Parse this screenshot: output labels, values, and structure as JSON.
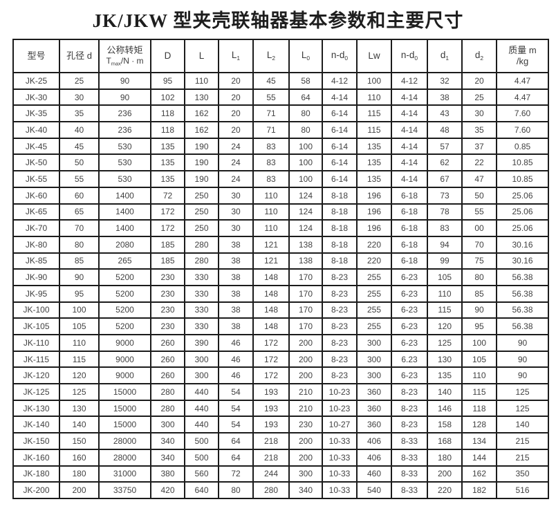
{
  "title": "JK/JKW 型夹壳联轴器基本参数和主要尺寸",
  "colors": {
    "border": "#1b1b1b",
    "cell_text": "#414141",
    "title_text": "#1e1e1e",
    "background": "#ffffff"
  },
  "table": {
    "headers": {
      "model": {
        "text": "型号"
      },
      "bore": {
        "text": "孔径 d"
      },
      "torque": {
        "line1": "公称转矩",
        "base": "T",
        "sub": "max",
        "rest": "/N · m"
      },
      "D": {
        "text": "D"
      },
      "L": {
        "text": "L"
      },
      "L1": {
        "base": "L",
        "sub": "1"
      },
      "L2": {
        "base": "L",
        "sub": "2"
      },
      "L0": {
        "base": "L",
        "sub": "0"
      },
      "nd0_a": {
        "base": "n-d",
        "sub": "0"
      },
      "Lw": {
        "text": "Lw"
      },
      "nd0_b": {
        "base": "n-d",
        "sub": "0"
      },
      "d1": {
        "base": "d",
        "sub": "1"
      },
      "d2": {
        "base": "d",
        "sub": "2"
      },
      "mass": {
        "line1": "质量 m",
        "line2": "/kg"
      }
    },
    "rows": [
      [
        "JK-25",
        "25",
        "90",
        "95",
        "110",
        "20",
        "45",
        "58",
        "4-12",
        "100",
        "4-12",
        "32",
        "20",
        "4.47"
      ],
      [
        "JK-30",
        "30",
        "90",
        "102",
        "130",
        "20",
        "55",
        "64",
        "4-14",
        "110",
        "4-14",
        "38",
        "25",
        "4.47"
      ],
      [
        "JK-35",
        "35",
        "236",
        "118",
        "162",
        "20",
        "71",
        "80",
        "6-14",
        "115",
        "4-14",
        "43",
        "30",
        "7.60"
      ],
      [
        "JK-40",
        "40",
        "236",
        "118",
        "162",
        "20",
        "71",
        "80",
        "6-14",
        "115",
        "4-14",
        "48",
        "35",
        "7.60"
      ],
      [
        "JK-45",
        "45",
        "530",
        "135",
        "190",
        "24",
        "83",
        "100",
        "6-14",
        "135",
        "4-14",
        "57",
        "37",
        "0.85"
      ],
      [
        "JK-50",
        "50",
        "530",
        "135",
        "190",
        "24",
        "83",
        "100",
        "6-14",
        "135",
        "4-14",
        "62",
        "22",
        "10.85"
      ],
      [
        "JK-55",
        "55",
        "530",
        "135",
        "190",
        "24",
        "83",
        "100",
        "6-14",
        "135",
        "4-14",
        "67",
        "47",
        "10.85"
      ],
      [
        "JK-60",
        "60",
        "1400",
        "72",
        "250",
        "30",
        "110",
        "124",
        "8-18",
        "196",
        "6-18",
        "73",
        "50",
        "25.06"
      ],
      [
        "JK-65",
        "65",
        "1400",
        "172",
        "250",
        "30",
        "110",
        "124",
        "8-18",
        "196",
        "6-18",
        "78",
        "55",
        "25.06"
      ],
      [
        "JK-70",
        "70",
        "1400",
        "172",
        "250",
        "30",
        "110",
        "124",
        "8-18",
        "196",
        "6-18",
        "83",
        "00",
        "25.06"
      ],
      [
        "JK-80",
        "80",
        "2080",
        "185",
        "280",
        "38",
        "121",
        "138",
        "8-18",
        "220",
        "6-18",
        "94",
        "70",
        "30.16"
      ],
      [
        "JK-85",
        "85",
        "265",
        "185",
        "280",
        "38",
        "121",
        "138",
        "8-18",
        "220",
        "6-18",
        "99",
        "75",
        "30.16"
      ],
      [
        "JK-90",
        "90",
        "5200",
        "230",
        "330",
        "38",
        "148",
        "170",
        "8-23",
        "255",
        "6-23",
        "105",
        "80",
        "56.38"
      ],
      [
        "JK-95",
        "95",
        "5200",
        "230",
        "330",
        "38",
        "148",
        "170",
        "8-23",
        "255",
        "6-23",
        "110",
        "85",
        "56.38"
      ],
      [
        "JK-100",
        "100",
        "5200",
        "230",
        "330",
        "38",
        "148",
        "170",
        "8-23",
        "255",
        "6-23",
        "115",
        "90",
        "56.38"
      ],
      [
        "JK-105",
        "105",
        "5200",
        "230",
        "330",
        "38",
        "148",
        "170",
        "8-23",
        "255",
        "6-23",
        "120",
        "95",
        "56.38"
      ],
      [
        "JK-110",
        "110",
        "9000",
        "260",
        "390",
        "46",
        "172",
        "200",
        "8-23",
        "300",
        "6-23",
        "125",
        "100",
        "90"
      ],
      [
        "JK-115",
        "115",
        "9000",
        "260",
        "300",
        "46",
        "172",
        "200",
        "8-23",
        "300",
        "6.23",
        "130",
        "105",
        "90"
      ],
      [
        "JK-120",
        "120",
        "9000",
        "260",
        "300",
        "46",
        "172",
        "200",
        "8-23",
        "300",
        "6-23",
        "135",
        "110",
        "90"
      ],
      [
        "JK-125",
        "125",
        "15000",
        "280",
        "440",
        "54",
        "193",
        "210",
        "10-23",
        "360",
        "8-23",
        "140",
        "115",
        "125"
      ],
      [
        "JK-130",
        "130",
        "15000",
        "280",
        "440",
        "54",
        "193",
        "210",
        "10-23",
        "360",
        "8-23",
        "146",
        "118",
        "125"
      ],
      [
        "JK-140",
        "140",
        "15000",
        "300",
        "440",
        "54",
        "193",
        "230",
        "10-27",
        "360",
        "8-23",
        "158",
        "128",
        "140"
      ],
      [
        "JK-150",
        "150",
        "28000",
        "340",
        "500",
        "64",
        "218",
        "200",
        "10-33",
        "406",
        "8-33",
        "168",
        "134",
        "215"
      ],
      [
        "JK-160",
        "160",
        "28000",
        "340",
        "500",
        "64",
        "218",
        "200",
        "10-33",
        "406",
        "8-33",
        "180",
        "144",
        "215"
      ],
      [
        "JK-180",
        "180",
        "31000",
        "380",
        "560",
        "72",
        "244",
        "300",
        "10-33",
        "460",
        "8-33",
        "200",
        "162",
        "350"
      ],
      [
        "JK-200",
        "200",
        "33750",
        "420",
        "640",
        "80",
        "280",
        "340",
        "10-33",
        "540",
        "8-33",
        "220",
        "182",
        "516"
      ]
    ]
  }
}
